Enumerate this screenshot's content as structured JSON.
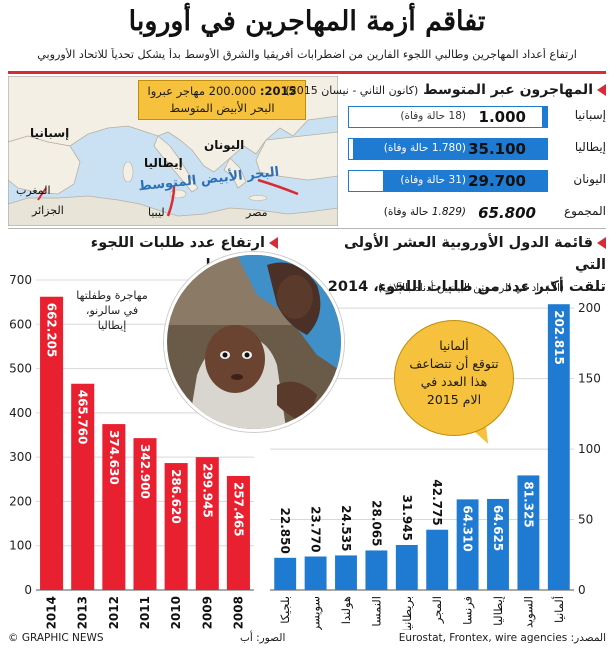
{
  "title": "تفاقم أزمة المهاجرين في أوروبا",
  "subtitle": "ارتفاع أعداد المهاجرين وطالبي اللجوء الفارين من اضطرابات أفريقيا والشرق الأوسط بدأ يشكل تحدياً للاتحاد الأوروبي",
  "map": {
    "labels": {
      "spain": "إسبانيا",
      "italy": "إيطاليا",
      "greece": "اليونان",
      "morocco": "المغرب",
      "algeria": "الجزائر",
      "libya": "ليبيا",
      "egypt": "مصر",
      "sea": "البحر الأبيض المتوسط"
    },
    "callout_year": "2015:",
    "callout_text": "200.000 مهاجر عبروا",
    "callout_line2": "البحر الأبيض المتوسط",
    "colors": {
      "land": "#e8e4d8",
      "sea": "#c9e1f3",
      "europe": "#f3efe4"
    }
  },
  "mediterranean": {
    "heading": "المهاجرون عبر المتوسط",
    "period": "(كانون الثاني - نيسان 2015)",
    "rows": [
      {
        "country": "إسبانيا",
        "value_label": "1.000",
        "value": 1000,
        "deaths": "(18 حالة وفاة)"
      },
      {
        "country": "إيطاليا",
        "value_label": "35.100",
        "value": 35100,
        "deaths": "(1.780 حالة وفاة)"
      },
      {
        "country": "اليونان",
        "value_label": "29.700",
        "value": 29700,
        "deaths": "(31 حالة وفاة)"
      }
    ],
    "total": {
      "label": "المجموع",
      "value_label": "65.800",
      "deaths_number": "(1.829",
      "deaths_text": "حالة وفاة)"
    }
  },
  "red_heading_line1": "ارتفاع عدد طلبات اللجوء",
  "red_heading_line2": "إلى أوروبا",
  "blue_heading_line1": "قائمة الدول الأوروبية العشر الأولى التي",
  "blue_heading_line2": "تلقت أكبر عدد من طلبات اللجوء، 2014",
  "blue_note": "(الأعداد في الرسمين البيانيين أدناه بالآلاف)",
  "photo_caption_line1": "مهاجرة وطفلتها",
  "photo_caption_line2": "في سالرنو،",
  "photo_caption_line3": "إيطاليا",
  "bubble": {
    "line1": "ألمانيا",
    "line2": "تتوقع أن تتضاعف",
    "line3": "هذا العدد في",
    "line4": "الام 2015"
  },
  "footer": {
    "credit": "© GRAPHIC NEWS",
    "photos": "الصور: أب",
    "source": "المصدر: Eurostat, Frontex, wire agencies"
  },
  "colors": {
    "accent_red": "#e8202f",
    "accent_blue": "#1f7ad1",
    "callout": "#f6c13c"
  },
  "chart_data": [
    {
      "type": "bar",
      "title": "ارتفاع عدد طلبات اللجوء إلى أوروبا",
      "categories": [
        "2014",
        "2013",
        "2012",
        "2011",
        "2010",
        "2009",
        "2008"
      ],
      "values": [
        662.205,
        465.76,
        374.63,
        342.9,
        286.62,
        299.945,
        257.465
      ],
      "value_labels": [
        "662.205",
        "465.760",
        "374.630",
        "342.900",
        "286.620",
        "299.945",
        "257.465"
      ],
      "ylim": [
        0,
        700
      ],
      "yticks": [
        0,
        100,
        200,
        300,
        400,
        500,
        600,
        700
      ],
      "color": "#e8202f",
      "grid": true
    },
    {
      "type": "bar",
      "title": "قائمة الدول الأوروبية العشر الأولى التي تلقت أكبر عدد من طلبات اللجوء، 2014",
      "categories": [
        "بلجيكا",
        "سويسرا",
        "هولندا",
        "النمسا",
        "بريطانيا",
        "المجر",
        "فرنسا",
        "إيطاليا",
        "السويد",
        "ألمانيا"
      ],
      "values": [
        22.85,
        23.77,
        24.535,
        28.065,
        31.945,
        42.775,
        64.31,
        64.625,
        81.325,
        202.815
      ],
      "value_labels": [
        "22.850",
        "23.770",
        "24.535",
        "28.065",
        "31.945",
        "42.775",
        "64.310",
        "64.625",
        "81.325",
        "202.815"
      ],
      "ylim": [
        0,
        220
      ],
      "yticks": [
        0,
        50,
        100,
        150,
        200
      ],
      "color": "#1f7ad1",
      "grid": true
    }
  ]
}
